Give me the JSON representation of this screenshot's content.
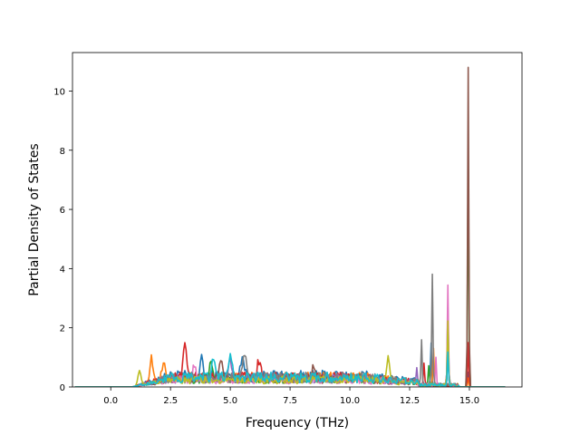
{
  "chart_data": {
    "type": "line",
    "title": "",
    "xlabel": "Frequency (THz)",
    "ylabel": "Partial Density of States",
    "xlim": [
      -1.6,
      17.2
    ],
    "ylim": [
      0,
      11.3
    ],
    "x_ticks": [
      0.0,
      2.5,
      5.0,
      7.5,
      10.0,
      12.5,
      15.0
    ],
    "x_tick_labels": [
      "0.0",
      "2.5",
      "5.0",
      "7.5",
      "10.0",
      "12.5",
      "15.0"
    ],
    "y_ticks": [
      0,
      2,
      4,
      6,
      8,
      10
    ],
    "y_tick_labels": [
      "0",
      "2",
      "4",
      "6",
      "8",
      "10"
    ],
    "grid": false,
    "legend": "none",
    "x_range_of_data": [
      -1.5,
      16.5
    ],
    "series": [
      {
        "color": "#1f77b4",
        "broad_level": 0.45,
        "peaks": [
          [
            3.8,
            0.55
          ],
          [
            5.5,
            0.8
          ],
          [
            13.4,
            1.4
          ],
          [
            14.1,
            2.6
          ],
          [
            14.95,
            0.5
          ]
        ]
      },
      {
        "color": "#ff7f0e",
        "broad_level": 0.4,
        "peaks": [
          [
            1.7,
            0.85
          ],
          [
            2.2,
            0.6
          ],
          [
            13.5,
            1.2
          ],
          [
            14.1,
            1.5
          ],
          [
            14.95,
            0.3
          ]
        ]
      },
      {
        "color": "#2ca02c",
        "broad_level": 0.35,
        "peaks": [
          [
            4.2,
            0.6
          ],
          [
            13.3,
            0.6
          ],
          [
            14.1,
            1.7
          ],
          [
            14.95,
            8.0
          ]
        ]
      },
      {
        "color": "#d62728",
        "broad_level": 0.4,
        "peaks": [
          [
            3.1,
            1.15
          ],
          [
            6.2,
            0.6
          ],
          [
            13.1,
            0.7
          ],
          [
            14.95,
            1.5
          ]
        ]
      },
      {
        "color": "#9467bd",
        "broad_level": 0.35,
        "peaks": [
          [
            5.0,
            0.7
          ],
          [
            12.8,
            0.5
          ],
          [
            14.1,
            1.2
          ]
        ]
      },
      {
        "color": "#8c564b",
        "broad_level": 0.35,
        "peaks": [
          [
            4.6,
            0.6
          ],
          [
            8.5,
            0.45
          ],
          [
            14.95,
            10.8
          ]
        ]
      },
      {
        "color": "#e377c2",
        "broad_level": 0.3,
        "peaks": [
          [
            3.5,
            0.5
          ],
          [
            13.6,
            0.9
          ],
          [
            14.1,
            3.4
          ]
        ]
      },
      {
        "color": "#7f7f7f",
        "broad_level": 0.4,
        "peaks": [
          [
            5.6,
            0.9
          ],
          [
            13.0,
            1.55
          ],
          [
            13.45,
            3.8
          ]
        ]
      },
      {
        "color": "#bcbd22",
        "broad_level": 0.3,
        "peaks": [
          [
            1.2,
            0.5
          ],
          [
            11.6,
            0.8
          ],
          [
            14.1,
            2.2
          ]
        ]
      },
      {
        "color": "#17becf",
        "broad_level": 0.4,
        "peaks": [
          [
            5.0,
            0.95
          ],
          [
            4.3,
            0.7
          ],
          [
            14.1,
            1.1
          ]
        ]
      }
    ]
  }
}
